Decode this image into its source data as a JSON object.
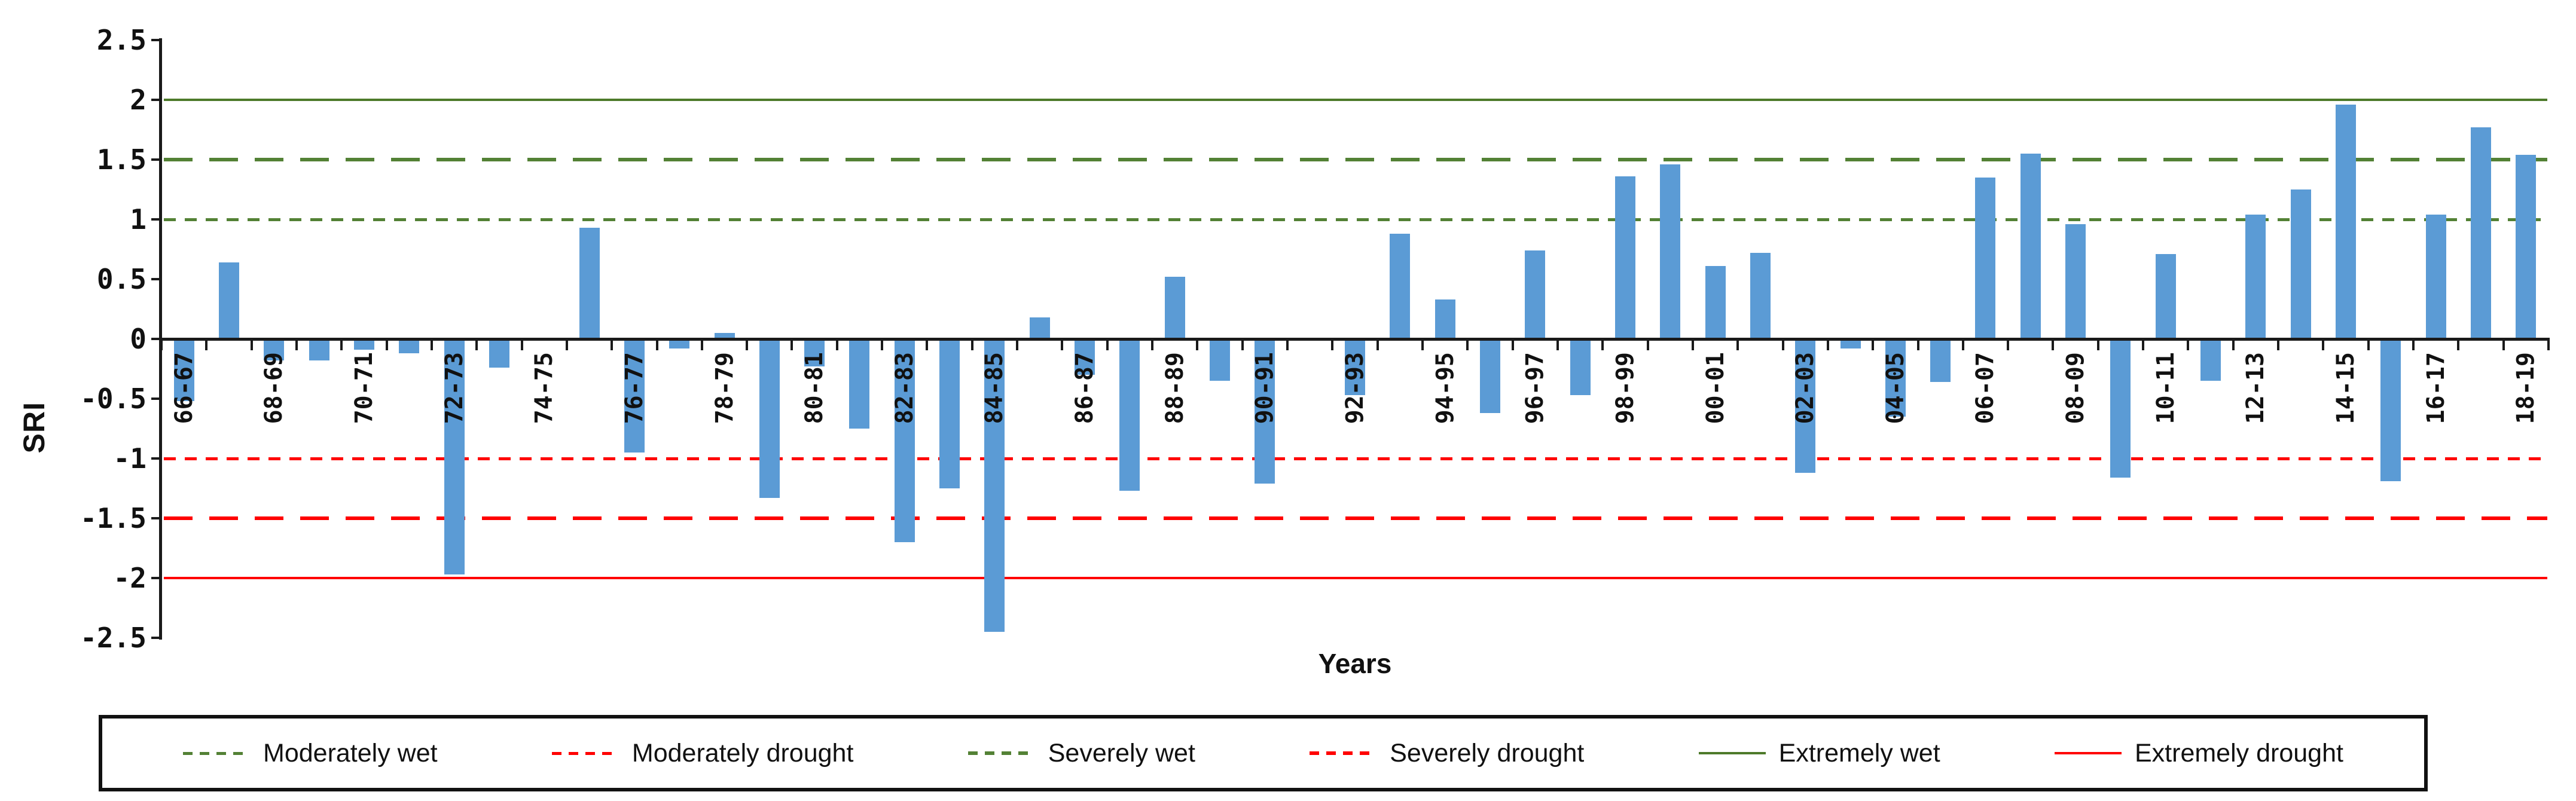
{
  "figure": {
    "background": "#ffffff"
  },
  "y_axis": {
    "title": "SRI",
    "ticks": [
      "2.5",
      "2",
      "1.5",
      "1",
      "0.5",
      "0",
      "-0.5",
      "-1",
      "-1.5",
      "-2",
      "-2.5"
    ],
    "max": 2.5,
    "min": -2.5,
    "step": 0.5
  },
  "x_axis": {
    "title": "Years"
  },
  "reference_lines": [
    {
      "label": "Moderately wet",
      "value": 1,
      "color": "#538135",
      "style": "short-dash"
    },
    {
      "label": "Moderately drought",
      "value": -1,
      "color": "#ff0000",
      "style": "short-dash"
    },
    {
      "label": "Severely wet",
      "value": 1.5,
      "color": "#538135",
      "style": "long-dash"
    },
    {
      "label": "Severely drought",
      "value": -1.5,
      "color": "#ff0000",
      "style": "long-dash"
    },
    {
      "label": "Extremely wet",
      "value": 2,
      "color": "#4d7a2a",
      "style": "solid"
    },
    {
      "label": "Extremely drought",
      "value": -2,
      "color": "#ff0000",
      "style": "solid"
    }
  ],
  "legend": {
    "items": [
      {
        "label": "Moderately wet",
        "color": "#538135",
        "style": "short-dash"
      },
      {
        "label": "Moderately drought",
        "color": "#ff0000",
        "style": "short-dash"
      },
      {
        "label": "Severely wet",
        "color": "#538135",
        "style": "long-dash"
      },
      {
        "label": "Severely drought",
        "color": "#ff0000",
        "style": "long-dash"
      },
      {
        "label": "Extremely wet",
        "color": "#4d7a2a",
        "style": "solid"
      },
      {
        "label": "Extremely drought",
        "color": "#ff0000",
        "style": "solid"
      }
    ]
  },
  "chart_data": {
    "type": "bar",
    "title": "",
    "xlabel": "Years",
    "ylabel": "SRI",
    "ylim": [
      -2.5,
      2.5
    ],
    "bar_color": "#5b9bd5",
    "categories": [
      "66-67",
      "67-68",
      "68-69",
      "69-70",
      "70-71",
      "71-72",
      "72-73",
      "73-74",
      "74-75",
      "75-76",
      "76-77",
      "77-78",
      "78-79",
      "79-80",
      "80-81",
      "81-82",
      "82-83",
      "83-84",
      "84-85",
      "85-86",
      "86-87",
      "87-88",
      "88-89",
      "89-90",
      "90-91",
      "91-92",
      "92-93",
      "93-94",
      "94-95",
      "95-96",
      "96-97",
      "97-98",
      "98-99",
      "99-00",
      "00-01",
      "01-02",
      "02-03",
      "03-04",
      "04-05",
      "05-06",
      "06-07",
      "07-08",
      "08-09",
      "09-10",
      "10-11",
      "11-12",
      "12-13",
      "13-14",
      "14-15",
      "15-16",
      "16-17",
      "17-18",
      "18-19"
    ],
    "values": [
      -0.52,
      0.64,
      -0.18,
      -0.18,
      -0.09,
      -0.12,
      -1.97,
      -0.24,
      0,
      0.93,
      -0.95,
      -0.08,
      0.05,
      -1.33,
      -0.23,
      -0.75,
      -1.7,
      -1.25,
      -2.45,
      0.18,
      -0.3,
      -1.27,
      0.52,
      -0.35,
      -1.21,
      0,
      -0.47,
      0.88,
      0.33,
      -0.62,
      0.74,
      -0.47,
      1.36,
      1.46,
      0.61,
      0.72,
      -1.12,
      -0.08,
      -0.65,
      -0.36,
      1.35,
      1.55,
      0.96,
      -1.16,
      0.71,
      -0.35,
      1.04,
      1.25,
      1.96,
      -1.19,
      1.04,
      1.77,
      1.54
    ],
    "x_tick_labels_shown": [
      "66-67",
      "68-69",
      "70-71",
      "72-73",
      "74-75",
      "76-77",
      "78-79",
      "80-81",
      "82-83",
      "84-85",
      "86-87",
      "88-89",
      "90-91",
      "92-93",
      "94-95",
      "96-97",
      "98-99",
      "00-01",
      "02-03",
      "04-05",
      "06-07",
      "08-09",
      "10-11",
      "12-13",
      "14-15",
      "16-17",
      "18-19"
    ],
    "legend_position": "bottom",
    "grid": false
  }
}
